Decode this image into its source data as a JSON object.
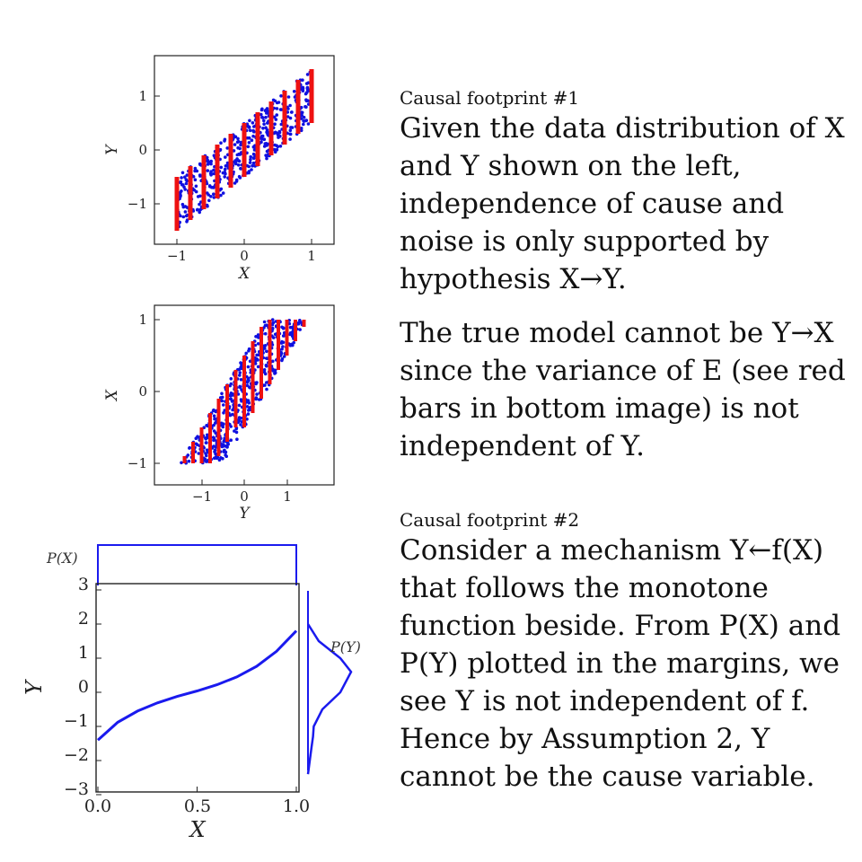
{
  "chart_data": [
    {
      "type": "scatter",
      "title": "",
      "xlabel": "X",
      "ylabel": "Y",
      "xlim": [
        -1.2,
        1.2
      ],
      "ylim": [
        -1.75,
        1.75
      ],
      "x_ticks": [
        "−1",
        "0",
        "1"
      ],
      "y_ticks": [
        "1",
        "0",
        "−1"
      ],
      "point_color": "#1010e0",
      "bar_color": "#ee1111",
      "description_of_bars": "vertical noise intervals of constant height",
      "bars": [
        {
          "x": -1.0,
          "y_low": -1.5,
          "y_high": -0.5
        },
        {
          "x": -0.8,
          "y_low": -1.3,
          "y_high": -0.3
        },
        {
          "x": -0.6,
          "y_low": -1.1,
          "y_high": -0.1
        },
        {
          "x": -0.4,
          "y_low": -0.9,
          "y_high": 0.1
        },
        {
          "x": -0.2,
          "y_low": -0.7,
          "y_high": 0.3
        },
        {
          "x": 0.0,
          "y_low": -0.5,
          "y_high": 0.5
        },
        {
          "x": 0.2,
          "y_low": -0.3,
          "y_high": 0.7
        },
        {
          "x": 0.4,
          "y_low": -0.1,
          "y_high": 0.9
        },
        {
          "x": 0.6,
          "y_low": 0.1,
          "y_high": 1.1
        },
        {
          "x": 0.8,
          "y_low": 0.3,
          "y_high": 1.3
        },
        {
          "x": 1.0,
          "y_low": 0.5,
          "y_high": 1.5
        }
      ],
      "relation": "y = x + uniform noise in [-0.5, 0.5]"
    },
    {
      "type": "scatter",
      "title": "",
      "xlabel": "Y",
      "ylabel": "X",
      "xlim": [
        -1.6,
        1.6
      ],
      "ylim": [
        -1.1,
        1.1
      ],
      "x_ticks": [
        "−1",
        "0",
        "1"
      ],
      "y_ticks": [
        "1",
        "0",
        "−1"
      ],
      "point_color": "#1010e0",
      "bar_color": "#ee1111",
      "bars": [
        {
          "x": -1.4,
          "y_low": -1.0,
          "y_high": -0.9
        },
        {
          "x": -1.2,
          "y_low": -1.0,
          "y_high": -0.7
        },
        {
          "x": -1.0,
          "y_low": -1.0,
          "y_high": -0.5
        },
        {
          "x": -0.8,
          "y_low": -1.0,
          "y_high": -0.3
        },
        {
          "x": -0.6,
          "y_low": -0.9,
          "y_high": -0.1
        },
        {
          "x": -0.4,
          "y_low": -0.7,
          "y_high": 0.1
        },
        {
          "x": -0.2,
          "y_low": -0.5,
          "y_high": 0.3
        },
        {
          "x": 0.0,
          "y_low": -0.5,
          "y_high": 0.5
        },
        {
          "x": 0.2,
          "y_low": -0.3,
          "y_high": 0.7
        },
        {
          "x": 0.4,
          "y_low": -0.1,
          "y_high": 0.9
        },
        {
          "x": 0.6,
          "y_low": 0.1,
          "y_high": 1.0
        },
        {
          "x": 0.8,
          "y_low": 0.3,
          "y_high": 1.0
        },
        {
          "x": 1.0,
          "y_low": 0.5,
          "y_high": 1.0
        },
        {
          "x": 1.2,
          "y_low": 0.7,
          "y_high": 1.0
        },
        {
          "x": 1.4,
          "y_low": 0.9,
          "y_high": 1.0
        }
      ],
      "relation": "x = y - noise, clipped to [-1, 1]"
    },
    {
      "type": "line",
      "title": "",
      "xlabel": "X",
      "ylabel": "Y",
      "xlim": [
        0.0,
        1.0
      ],
      "ylim": [
        -3,
        3
      ],
      "x_ticks": [
        "0.0",
        "0.5",
        "1.0"
      ],
      "y_ticks": [
        "3",
        "2",
        "1",
        "0",
        "−1",
        "−2",
        "−3"
      ],
      "line_color": "#1a1aee",
      "series": [
        {
          "x": [
            0.0,
            0.1,
            0.2,
            0.3,
            0.4,
            0.5,
            0.6,
            0.7,
            0.8,
            0.9,
            1.0
          ],
          "y": [
            -1.4,
            -0.88,
            -0.55,
            -0.31,
            -0.12,
            0.04,
            0.22,
            0.45,
            0.76,
            1.2,
            1.8
          ]
        }
      ],
      "marginals": {
        "p_x_label": "P(X)",
        "p_y_label": "P(Y)",
        "p_x": "uniform on [0, 1]",
        "p_y_x": [
          0,
          0.15,
          0.45,
          0.6,
          0.45,
          0.2,
          0.08,
          0.07,
          0.05,
          0
        ],
        "p_y_y": [
          2.0,
          1.5,
          1.0,
          0.6,
          0.0,
          -0.5,
          -1.0,
          -1.3,
          -1.6,
          -2.4
        ]
      }
    }
  ],
  "footprint1": {
    "heading": "Causal footprint #1",
    "text": "Given the data distribution of X and Y shown on the left, independence of cause and noise is only supported by hypothesis X→Y."
  },
  "middle_text": "The true model cannot be Y→X since the variance of E (see red bars in bottom image) is not independent of Y.",
  "footprint2": {
    "heading": "Causal footprint #2",
    "text": "Consider a mechanism Y←f(X) that follows the monotone function beside. From P(X) and P(Y) plotted in the margins, we see Y is not independent of f. Hence by Assumption 2, Y cannot be the cause variable."
  }
}
